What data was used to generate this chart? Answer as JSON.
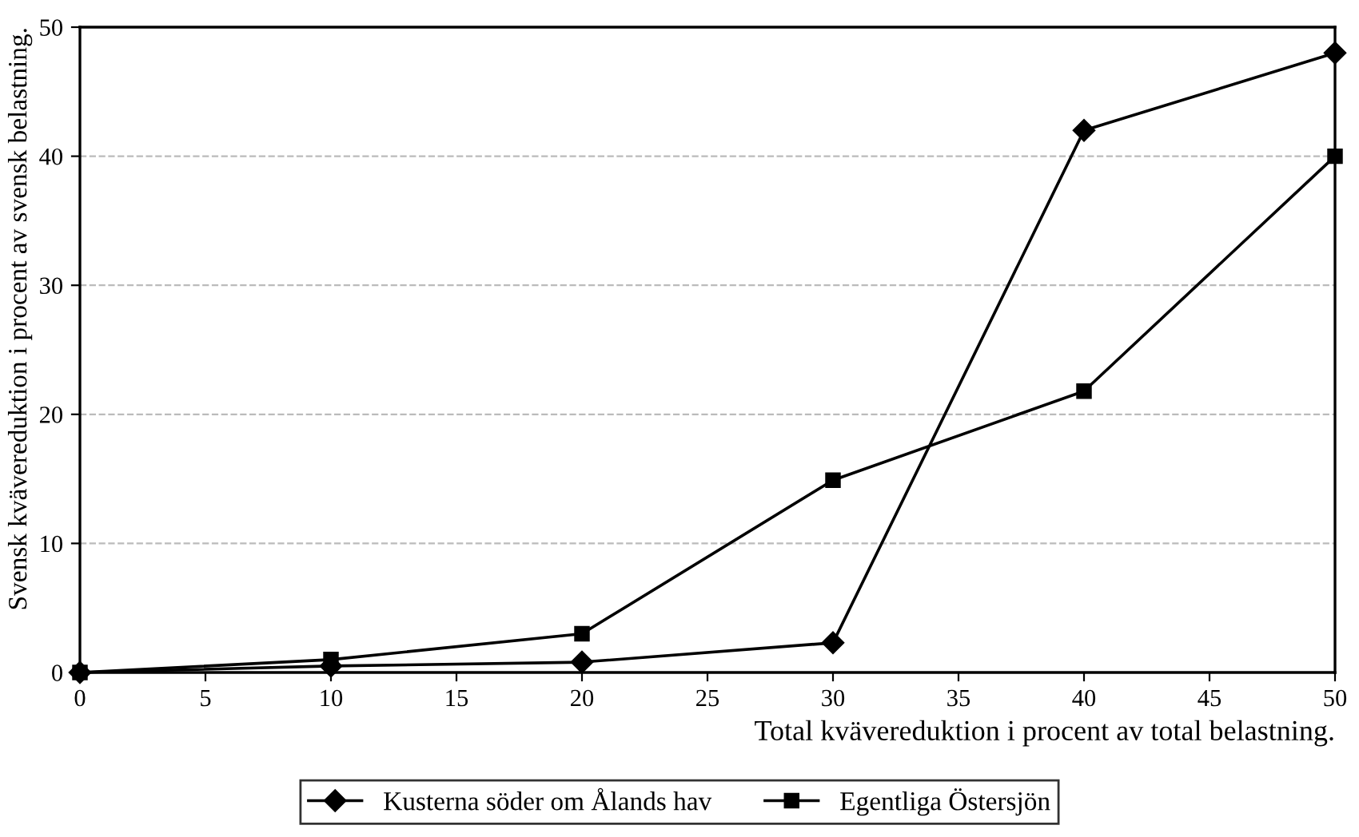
{
  "chart_data": {
    "type": "line",
    "xlabel": "Total kvävereduktion i procent av total belastning.",
    "ylabel": "Svensk kvävereduktion i procent av svensk belastning.",
    "x": [
      0,
      10,
      20,
      30,
      40,
      50
    ],
    "series": [
      {
        "name": "Kusterna söder om Ålands hav",
        "color": "#000000",
        "marker": "diamond",
        "values": [
          0,
          0.5,
          0.8,
          2.3,
          42,
          48
        ]
      },
      {
        "name": "Egentliga Östersjön",
        "color": "#000000",
        "marker": "square",
        "values": [
          0,
          1,
          3,
          14.9,
          21.8,
          40
        ]
      }
    ],
    "xlim": [
      0,
      50
    ],
    "xticks": [
      0,
      5,
      10,
      15,
      20,
      25,
      30,
      35,
      40,
      45,
      50
    ],
    "ylim": [
      0,
      50
    ],
    "yticks": [
      0,
      10,
      20,
      30,
      40,
      50
    ],
    "grid": "y",
    "legend": "bottom",
    "line_style": "solid"
  }
}
